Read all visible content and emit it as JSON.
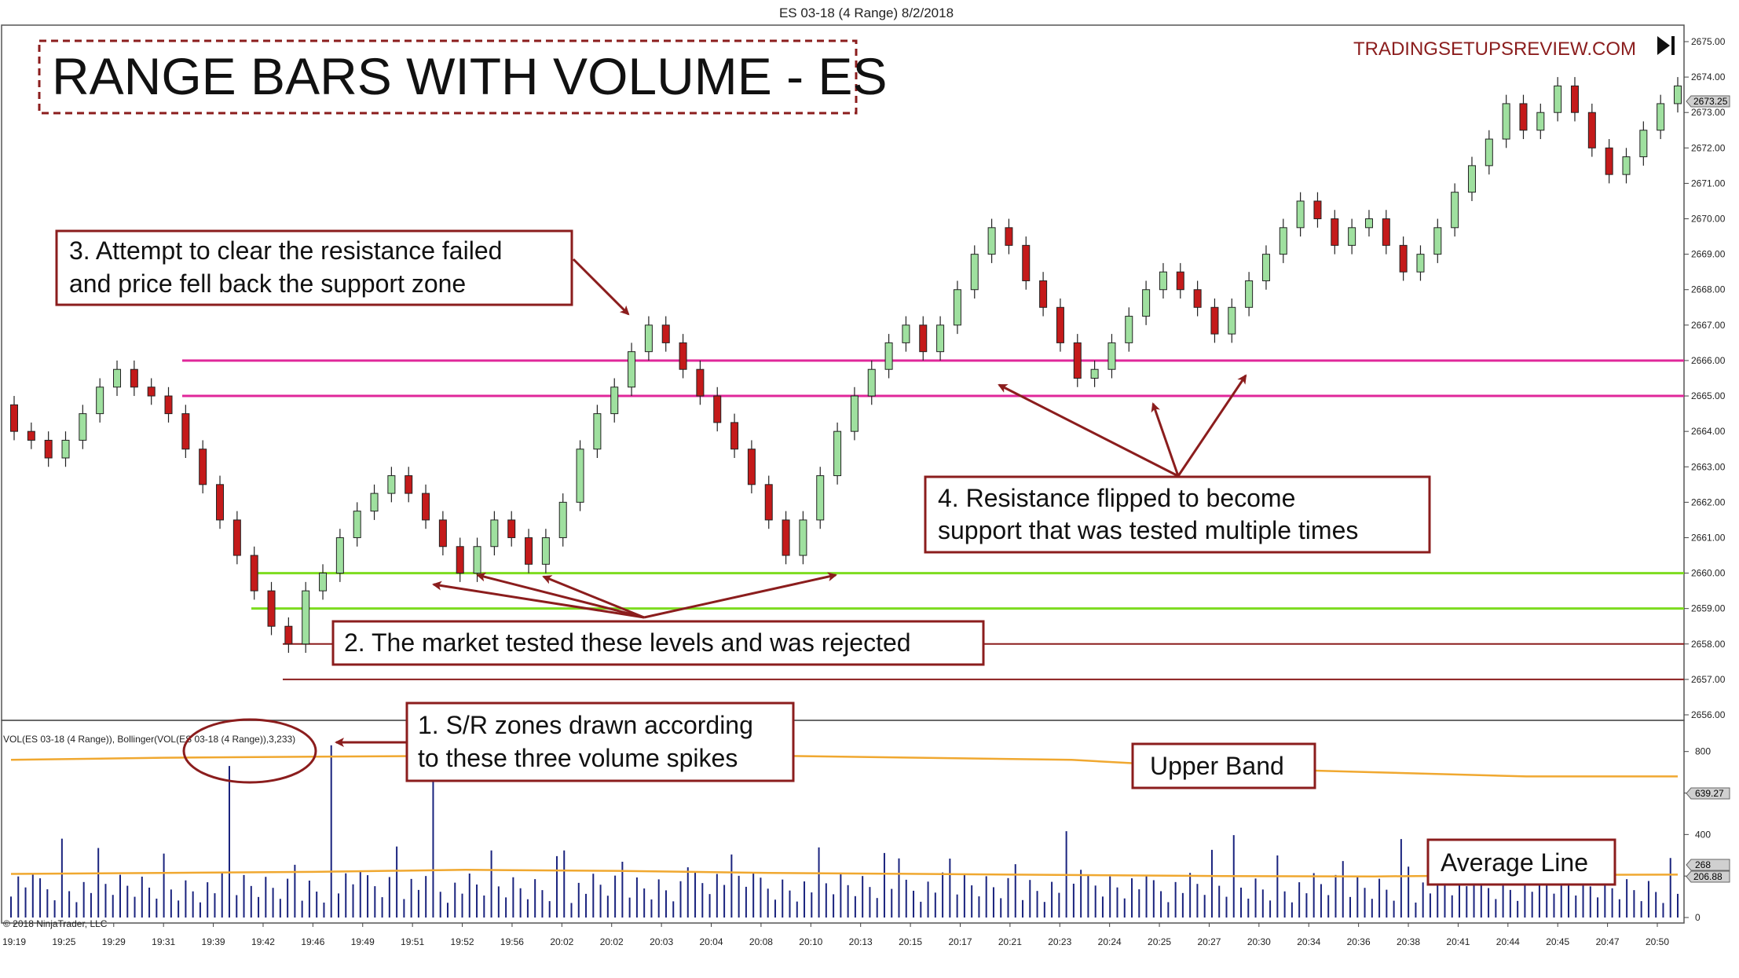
{
  "window": {
    "title": "ES 03-18 (4 Range)  8/2/2018",
    "watermark": "TRADINGSETUPSREVIEW.COM",
    "copyright": "© 2018 NinjaTrader, LLC",
    "nav_icon": "skip-to-end-icon"
  },
  "chart_data": [
    {
      "type": "candlestick",
      "title": "RANGE BARS WITH VOLUME - ES",
      "instrument": "ES 03-18 (4 Range)",
      "y_axis": {
        "range": [
          2655.75,
          2675.25
        ],
        "ticks": [
          "2675.00",
          "2674.00",
          "2673.00",
          "2672.00",
          "2671.00",
          "2670.00",
          "2669.00",
          "2668.00",
          "2667.00",
          "2666.00",
          "2665.00",
          "2664.00",
          "2663.00",
          "2662.00",
          "2661.00",
          "2660.00",
          "2659.00",
          "2658.00",
          "2657.00",
          "2656.00"
        ],
        "last_price_label": "2673.25"
      },
      "grid": false,
      "x_axis": {
        "time_labels": [
          "19:19",
          "19:25",
          "19:29",
          "19:31",
          "19:39",
          "19:42",
          "19:46",
          "19:49",
          "19:51",
          "19:52",
          "19:56",
          "20:02",
          "20:02",
          "20:03",
          "20:04",
          "20:08",
          "20:10",
          "20:13",
          "20:15",
          "20:17",
          "20:21",
          "20:23",
          "20:24",
          "20:25",
          "20:27",
          "20:30",
          "20:34",
          "20:36",
          "20:38",
          "20:41",
          "20:44",
          "20:45",
          "20:47",
          "20:50"
        ]
      },
      "closes": [
        2664.0,
        2663.75,
        2663.25,
        2663.75,
        2664.5,
        2665.25,
        2665.75,
        2665.25,
        2665.0,
        2664.5,
        2663.5,
        2662.5,
        2661.5,
        2660.5,
        2659.5,
        2658.5,
        2658.0,
        2659.5,
        2660.0,
        2661.0,
        2661.75,
        2662.25,
        2662.75,
        2662.25,
        2661.5,
        2660.75,
        2660.0,
        2660.75,
        2661.5,
        2661.0,
        2660.25,
        2661.0,
        2662.0,
        2663.5,
        2664.5,
        2665.25,
        2666.25,
        2667.0,
        2666.5,
        2665.75,
        2665.0,
        2664.25,
        2663.5,
        2662.5,
        2661.5,
        2660.5,
        2661.5,
        2662.75,
        2664.0,
        2665.0,
        2665.75,
        2666.5,
        2667.0,
        2666.25,
        2667.0,
        2668.0,
        2669.0,
        2669.75,
        2669.25,
        2668.25,
        2667.5,
        2666.5,
        2665.5,
        2665.75,
        2666.5,
        2667.25,
        2668.0,
        2668.5,
        2668.0,
        2667.5,
        2666.75,
        2667.5,
        2668.25,
        2669.0,
        2669.75,
        2670.5,
        2670.0,
        2669.25,
        2669.75,
        2670.0,
        2669.25,
        2668.5,
        2669.0,
        2669.75,
        2670.75,
        2671.5,
        2672.25,
        2673.25,
        2672.5,
        2673.0,
        2673.75,
        2673.0,
        2672.0,
        2671.25,
        2671.75,
        2672.5,
        2673.25,
        2673.75
      ],
      "zones": [
        {
          "color": "#e0279a",
          "from": 2665.0,
          "to": 2666.0
        },
        {
          "color": "#7ddc1f",
          "from": 2659.0,
          "to": 2660.0
        },
        {
          "color": "#8b1d1d",
          "from": 2657.0,
          "to": 2658.0
        }
      ],
      "annotations": [
        "3. Attempt to clear the resistance failed",
        "and price fell back the support zone",
        "4. Resistance flipped to become",
        "support that was tested multiple times",
        "2. The market tested these levels and was rejected"
      ]
    },
    {
      "type": "bar",
      "title": "VOL(ES 03-18 (4 Range)), Bollinger(VOL(ES 03-18 (4 Range)),3,233)",
      "y_axis": {
        "range": [
          0,
          920
        ],
        "ticks": [
          "800",
          "600",
          "400",
          "200",
          "0"
        ],
        "band_label": "639.27",
        "average_labels": [
          "268",
          "206.88"
        ]
      },
      "upper_band": [
        760,
        770,
        775,
        780,
        790,
        780,
        770,
        760,
        720,
        700,
        680,
        680
      ],
      "average_line": [
        210,
        215,
        220,
        230,
        225,
        215,
        210,
        205,
        200,
        198,
        205,
        206.88
      ],
      "volume_spikes": [
        {
          "bar": "19:31",
          "value": 730
        },
        {
          "bar": "19:39",
          "value": 830
        },
        {
          "bar": "19:42",
          "value": 780
        }
      ],
      "annotations": [
        "1. S/R zones drawn according",
        "to these three volume spikes",
        "Upper Band",
        "Average Line"
      ]
    }
  ]
}
